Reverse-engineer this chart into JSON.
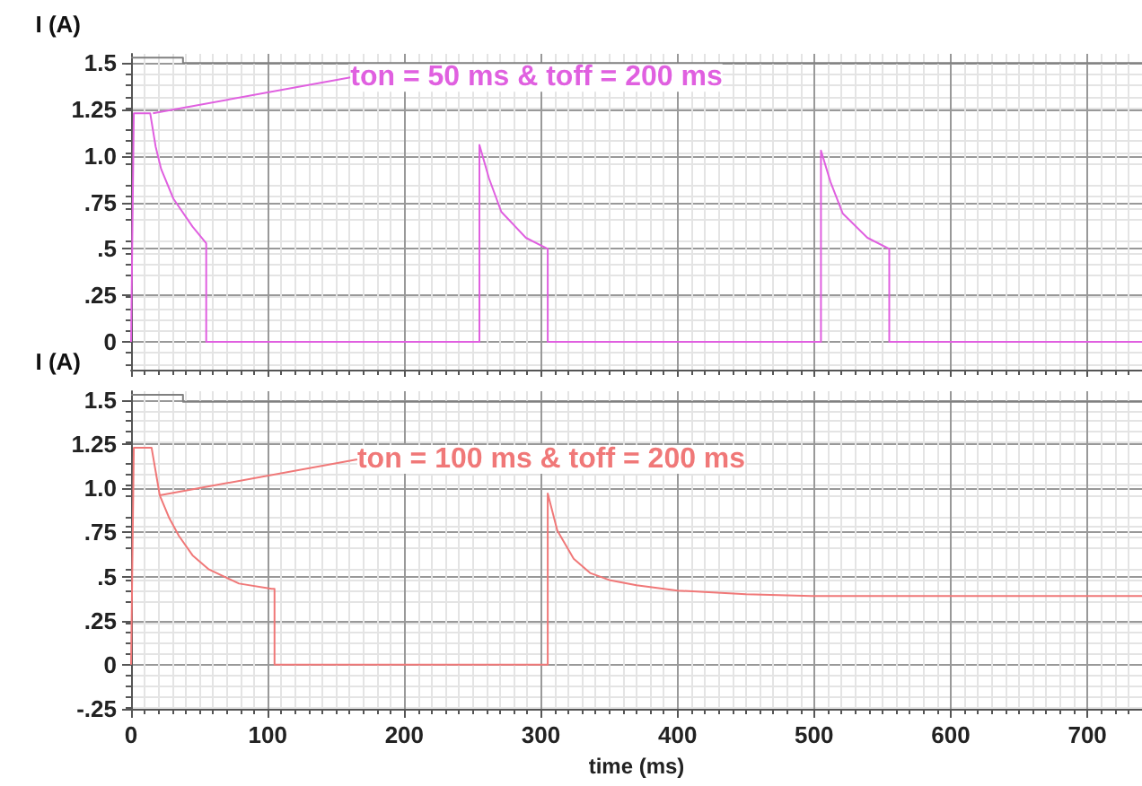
{
  "chart_data": [
    {
      "type": "line",
      "ylabel": "I (A)",
      "annotations": [
        {
          "text": "ton = 50 ms & toff = 200 ms",
          "x": 16,
          "y": 1.23
        }
      ],
      "series": [
        {
          "color": "#e060e0",
          "x": [
            0,
            2,
            14,
            18,
            22,
            31,
            45,
            55,
            55,
            255,
            255,
            262,
            271,
            289,
            305,
            305,
            505,
            505,
            512,
            521,
            539,
            555,
            555,
            740
          ],
          "values": [
            0,
            1.23,
            1.23,
            1.05,
            0.93,
            0.77,
            0.62,
            0.53,
            0,
            0,
            1.06,
            0.88,
            0.7,
            0.56,
            0.5,
            0,
            0,
            1.03,
            0.86,
            0.69,
            0.56,
            0.5,
            0,
            0
          ]
        },
        {
          "color": "#808080",
          "x": [
            0,
            38,
            38,
            740
          ],
          "values": [
            1.53,
            1.53,
            1.5,
            1.5
          ]
        }
      ],
      "xlim": [
        0,
        740
      ],
      "xticks": [
        0,
        100,
        200,
        300,
        400,
        500,
        600,
        700
      ],
      "ylim": [
        -0.15,
        1.55
      ],
      "yticks": [
        {
          "value": 0,
          "label": "0"
        },
        {
          "value": 0.25,
          "label": ".25"
        },
        {
          "value": 0.5,
          "label": ".5"
        },
        {
          "value": 0.75,
          "label": ".75"
        },
        {
          "value": 1,
          "label": "1.0"
        },
        {
          "value": 1.25,
          "label": "1.25"
        },
        {
          "value": 1.5,
          "label": "1.5"
        }
      ],
      "tick_labels": "y",
      "grid": true,
      "marker": "none",
      "line_style": "solid"
    },
    {
      "type": "line",
      "ylabel": "I (A)",
      "xlabel": "time (ms)",
      "annotations": [
        {
          "text": "ton = 100 ms & toff = 200 ms",
          "x": 21,
          "y": 0.96
        }
      ],
      "series": [
        {
          "color": "#f07878",
          "x": [
            0,
            2,
            15,
            21,
            28,
            35,
            45,
            57,
            79,
            103,
            105,
            105,
            305,
            305,
            312,
            324,
            336,
            350,
            370,
            400,
            450,
            498,
            600,
            740
          ],
          "values": [
            0,
            1.23,
            1.23,
            0.96,
            0.83,
            0.73,
            0.62,
            0.54,
            0.46,
            0.43,
            0.43,
            0,
            0,
            0.97,
            0.76,
            0.6,
            0.52,
            0.48,
            0.45,
            0.42,
            0.4,
            0.39,
            0.39,
            0.39
          ]
        },
        {
          "color": "#808080",
          "x": [
            0,
            38,
            38,
            740
          ],
          "values": [
            1.53,
            1.53,
            1.49,
            1.49
          ]
        }
      ],
      "xlim": [
        0,
        740
      ],
      "xticks": [
        0,
        100,
        200,
        300,
        400,
        500,
        600,
        700
      ],
      "ylim": [
        -0.25,
        1.55
      ],
      "yticks": [
        {
          "value": -0.25,
          "label": "-.25"
        },
        {
          "value": 0,
          "label": "0"
        },
        {
          "value": 0.25,
          "label": ".25"
        },
        {
          "value": 0.5,
          "label": ".5"
        },
        {
          "value": 0.75,
          "label": ".75"
        },
        {
          "value": 1,
          "label": "1.0"
        },
        {
          "value": 1.25,
          "label": "1.25"
        },
        {
          "value": 1.5,
          "label": "1.5"
        }
      ],
      "grid": true,
      "marker": "none",
      "line_style": "solid"
    }
  ]
}
